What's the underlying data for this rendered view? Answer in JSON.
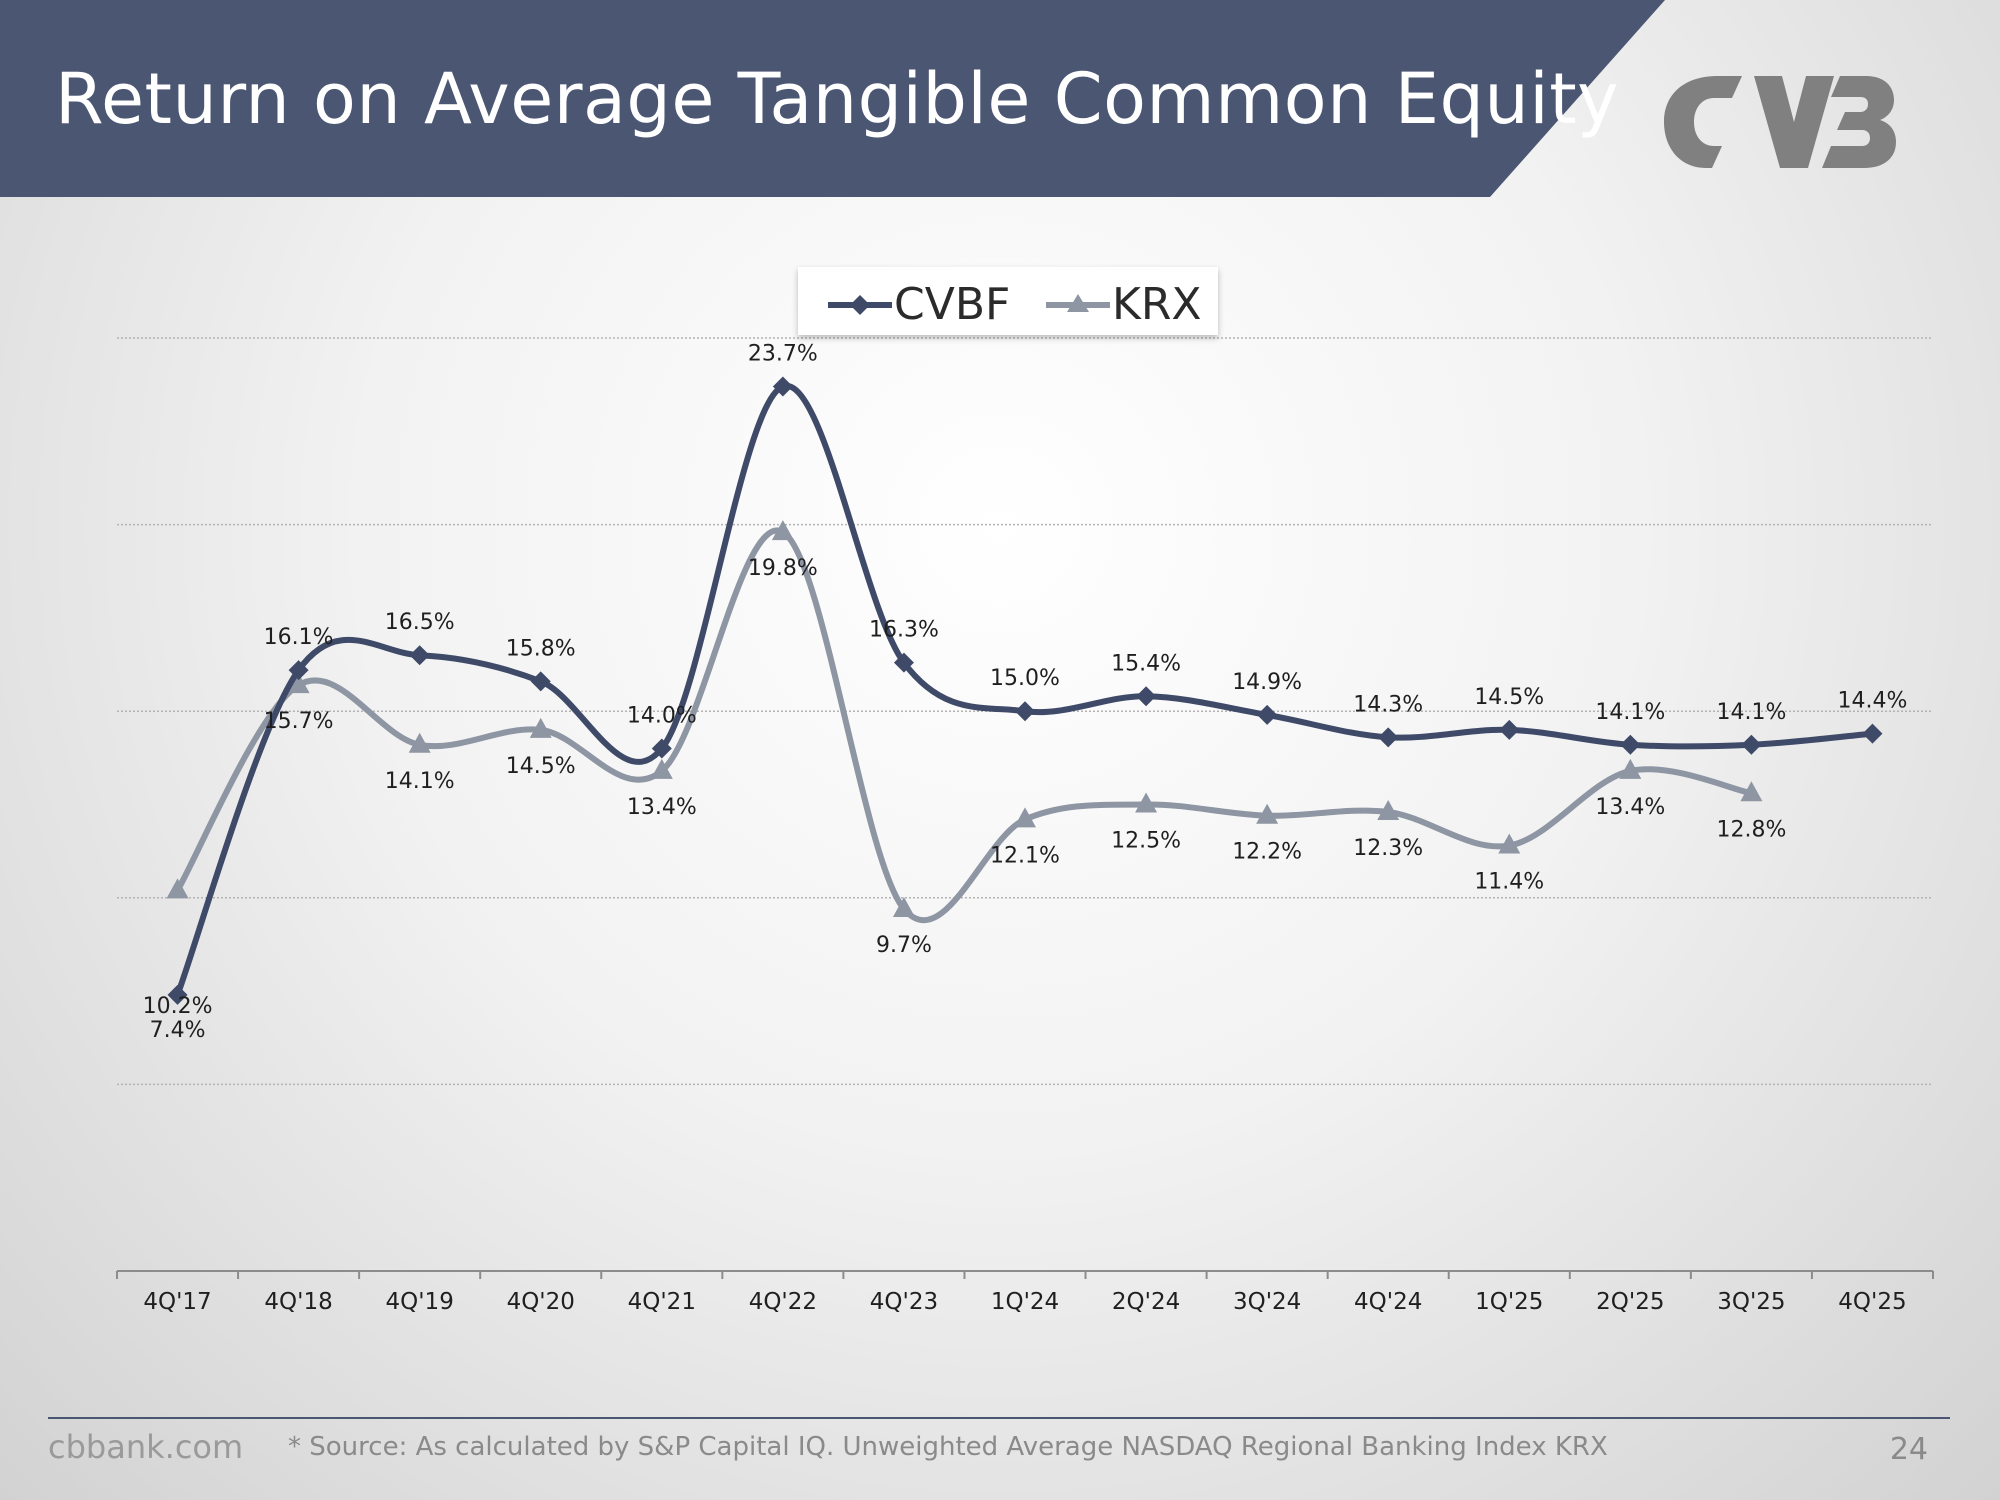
{
  "slide": {
    "title": "Return on Average Tangible Common Equity",
    "footer_site": "cbbank.com",
    "footer_source": "* Source: As calculated by S&P Capital IQ. Unweighted Average NASDAQ Regional Banking Index KRX",
    "page_number": "24"
  },
  "colors": {
    "banner": "#4b5673",
    "cvbf": "#3e4a68",
    "krx": "#8e95a3",
    "logo": "#808080"
  },
  "chart_data": {
    "type": "line",
    "title": "",
    "xlabel": "",
    "ylabel": "",
    "categories": [
      "4Q'17",
      "4Q'18",
      "4Q'19",
      "4Q'20",
      "4Q'21",
      "4Q'22",
      "4Q'23",
      "1Q'24",
      "2Q'24",
      "3Q'24",
      "4Q'24",
      "1Q'25",
      "2Q'25",
      "3Q'25",
      "4Q'25"
    ],
    "ylim": [
      0,
      25
    ],
    "y_axis_visible": false,
    "grid": true,
    "gridlines": [
      5,
      10,
      15,
      20,
      25
    ],
    "legend_position": "top-center",
    "series": [
      {
        "name": "CVBF",
        "marker": "diamond",
        "color": "#3e4a68",
        "values": [
          7.4,
          16.1,
          16.5,
          15.8,
          14.0,
          23.7,
          16.3,
          15.0,
          15.4,
          14.9,
          14.3,
          14.5,
          14.1,
          14.1,
          14.4
        ],
        "labels": [
          "7.4%",
          "16.1%",
          "16.5%",
          "15.8%",
          "14.0%",
          "23.7%",
          "16.3%",
          "15.0%",
          "15.4%",
          "14.9%",
          "14.3%",
          "14.5%",
          "14.1%",
          "14.1%",
          "14.4%"
        ]
      },
      {
        "name": "KRX",
        "marker": "triangle",
        "color": "#8e95a3",
        "values": [
          10.2,
          15.7,
          14.1,
          14.5,
          13.4,
          19.8,
          9.7,
          12.1,
          12.5,
          12.2,
          12.3,
          11.4,
          13.4,
          12.8,
          null
        ],
        "labels": [
          "10.2%",
          "15.7%",
          "14.1%",
          "14.5%",
          "13.4%",
          "19.8%",
          "9.7%",
          "12.1%",
          "12.5%",
          "12.2%",
          "12.3%",
          "11.4%",
          "13.4%",
          "12.8%",
          ""
        ]
      }
    ]
  }
}
